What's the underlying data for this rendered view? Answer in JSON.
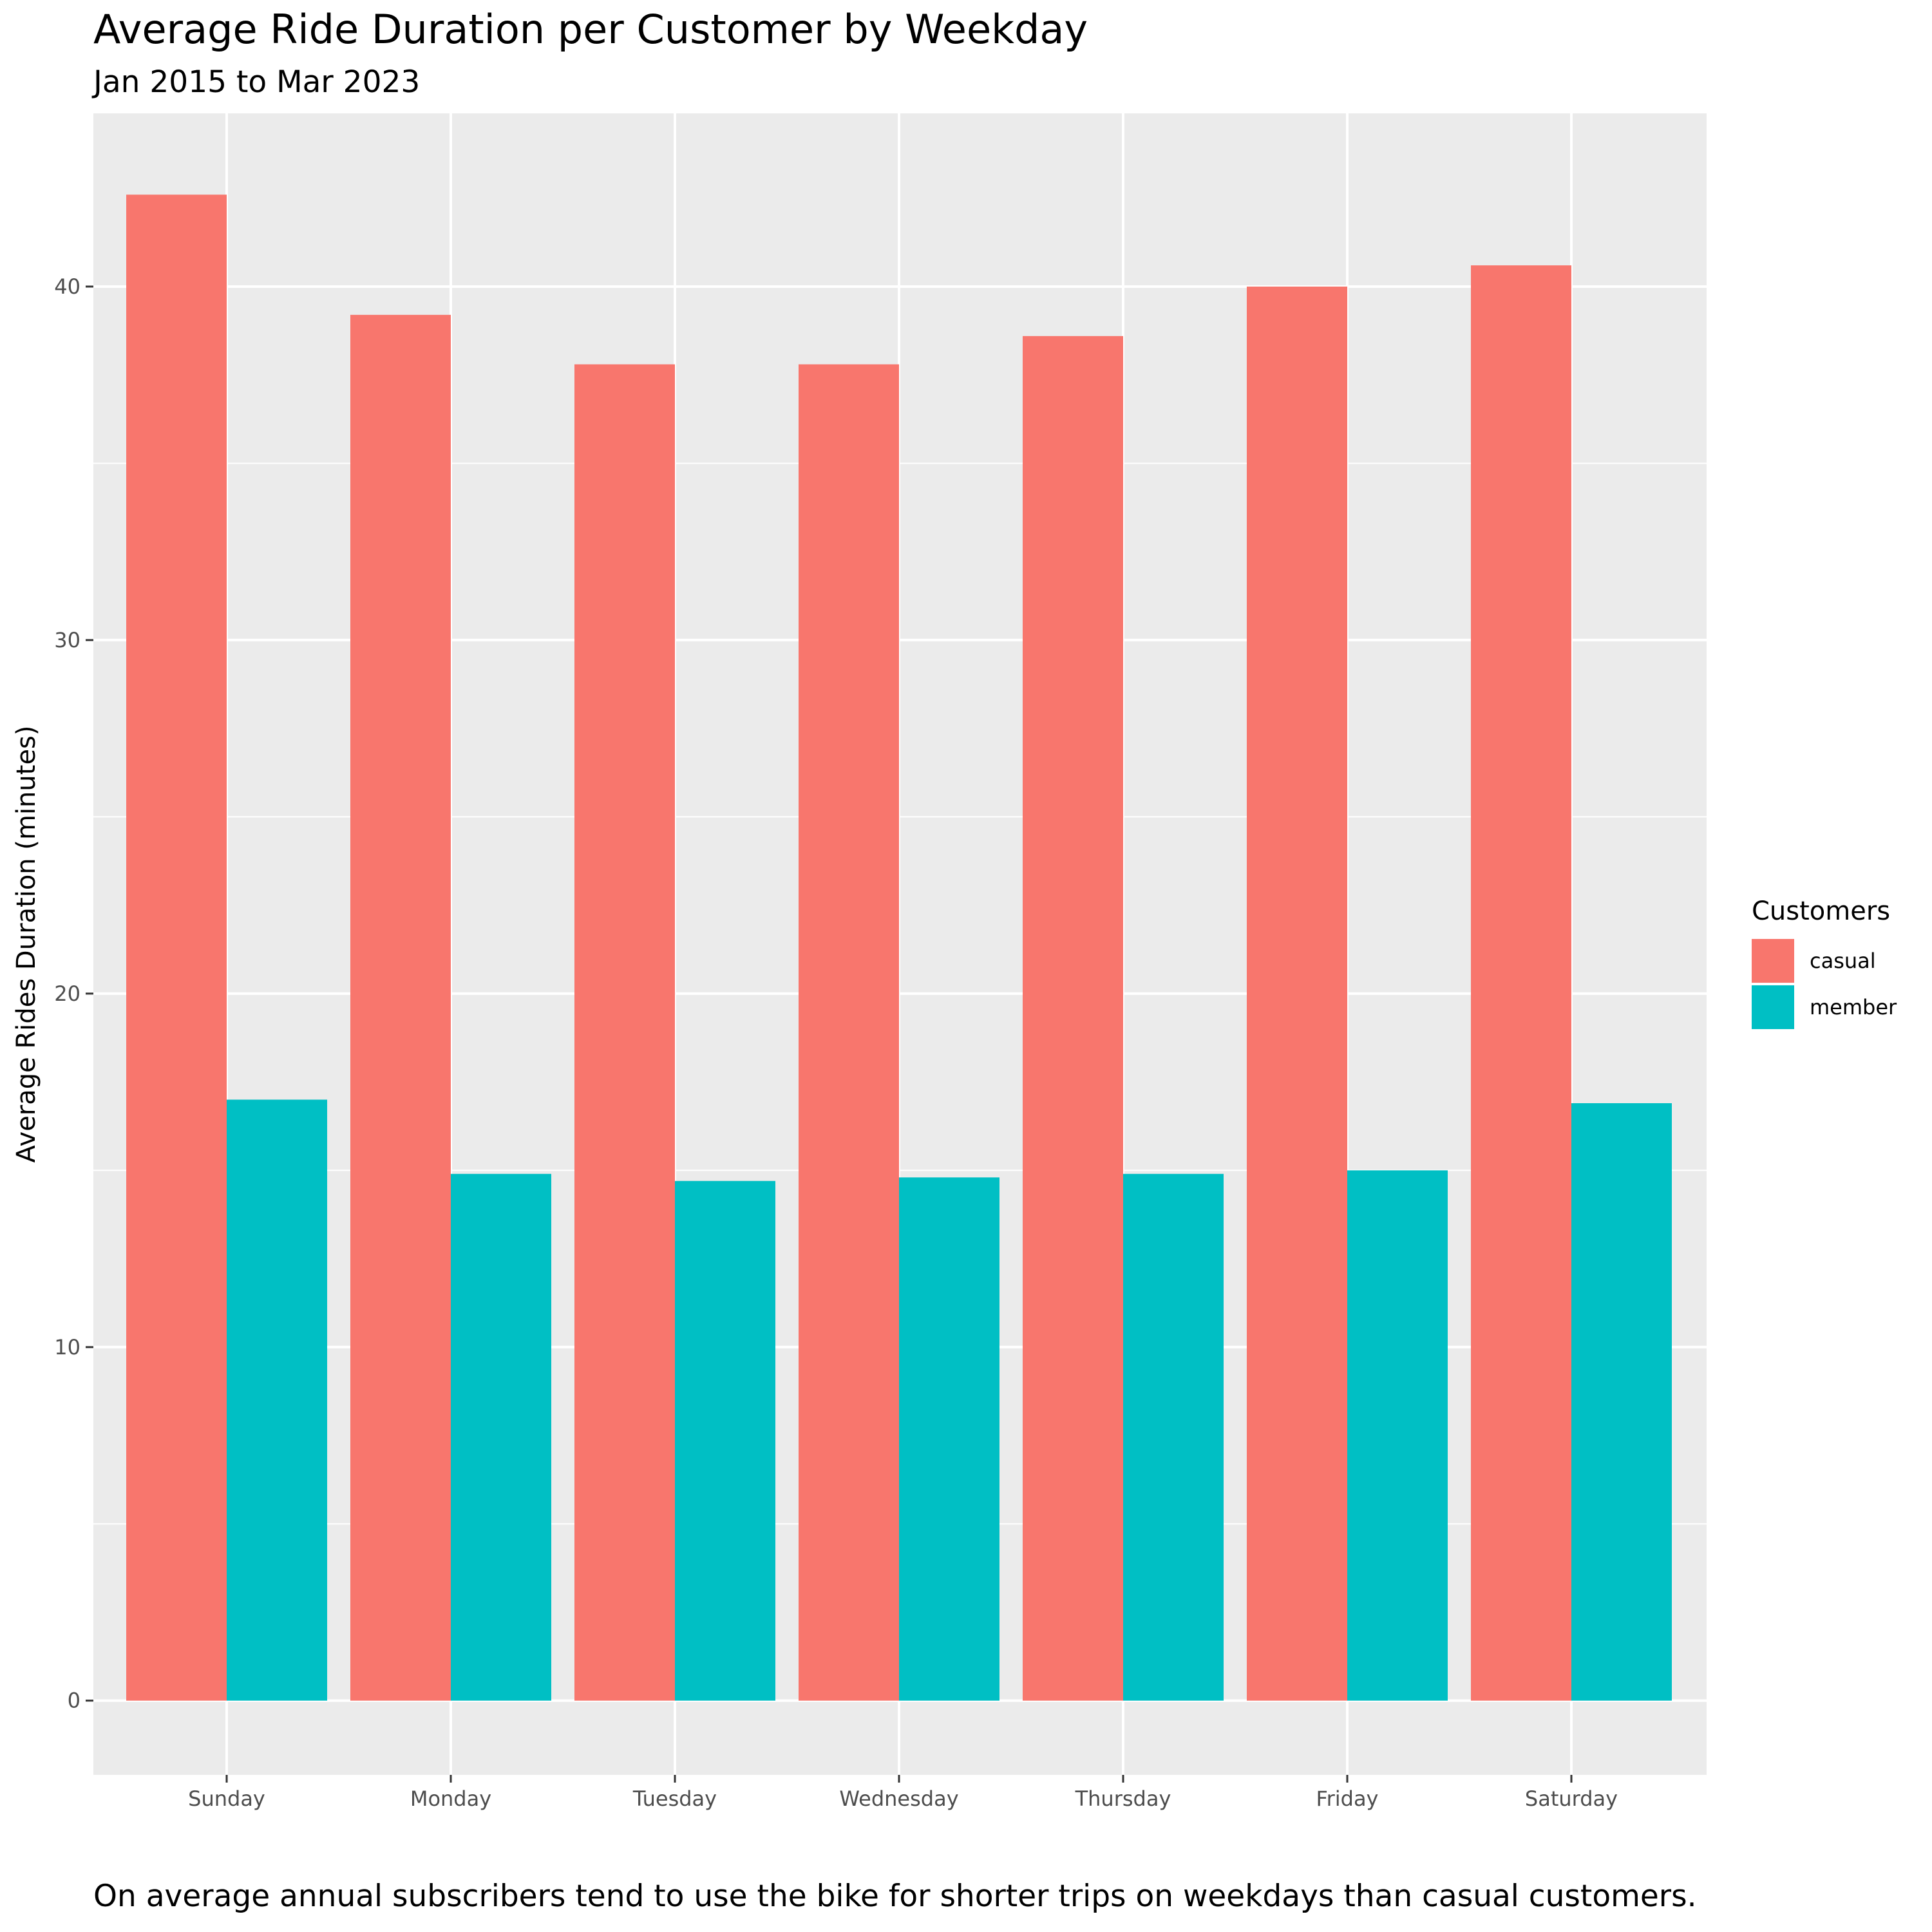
{
  "chart_data": {
    "type": "bar",
    "title": "Average Ride Duration per Customer by Weekday",
    "subtitle": "Jan 2015 to Mar 2023",
    "caption": "On average annual subscribers tend to use the bike for shorter trips on weekdays than casual customers.",
    "xlabel": "",
    "ylabel": "Average Rides Duration (minutes)",
    "ylim": [
      -2.1,
      44.9
    ],
    "yticks": [
      0,
      10,
      20,
      30,
      40
    ],
    "categories": [
      "Sunday",
      "Monday",
      "Tuesday",
      "Wednesday",
      "Thursday",
      "Friday",
      "Saturday"
    ],
    "series": [
      {
        "name": "casual",
        "color": "#F8766D",
        "values": [
          42.6,
          39.2,
          37.8,
          37.8,
          38.6,
          40.0,
          40.6
        ]
      },
      {
        "name": "member",
        "color": "#00BFC4",
        "values": [
          17.0,
          14.9,
          14.7,
          14.8,
          14.9,
          15.0,
          16.9
        ]
      }
    ],
    "grid": true,
    "panel_background": "#EBEBEB",
    "legend": {
      "title": "Customers",
      "position": "right"
    }
  }
}
